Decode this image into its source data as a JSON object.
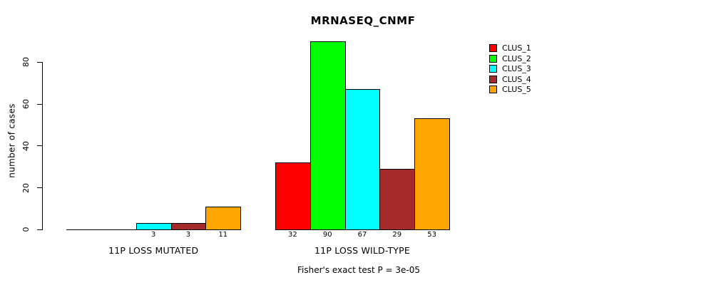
{
  "title": "MRNASEQ_CNMF",
  "footer": "Fisher's exact test P = 3e-05",
  "y_axis": {
    "label": "number of cases",
    "ticks": [
      0,
      20,
      40,
      60,
      80
    ]
  },
  "legend": {
    "items": [
      {
        "label": "CLUS_1",
        "color": "#FF0000"
      },
      {
        "label": "CLUS_2",
        "color": "#00FF00"
      },
      {
        "label": "CLUS_3",
        "color": "#00FFFF"
      },
      {
        "label": "CLUS_4",
        "color": "#A52A2A"
      },
      {
        "label": "CLUS_5",
        "color": "#FFA500"
      }
    ]
  },
  "chart_data": {
    "type": "bar",
    "title": "MRNASEQ_CNMF",
    "subtitle": "Fisher's exact test P = 3e-05",
    "xlabel": "",
    "ylabel": "number of cases",
    "categories": [
      "11P LOSS MUTATED",
      "11P LOSS WILD-TYPE"
    ],
    "series": [
      {
        "name": "CLUS_1",
        "color": "#FF0000",
        "values": [
          0,
          32
        ]
      },
      {
        "name": "CLUS_2",
        "color": "#00FF00",
        "values": [
          0,
          90
        ]
      },
      {
        "name": "CLUS_3",
        "color": "#00FFFF",
        "values": [
          3,
          67
        ]
      },
      {
        "name": "CLUS_4",
        "color": "#A52A2A",
        "values": [
          3,
          29
        ]
      },
      {
        "name": "CLUS_5",
        "color": "#FFA500",
        "values": [
          11,
          53
        ]
      }
    ],
    "bar_value_labels": {
      "11P LOSS MUTATED": [
        0,
        0,
        3,
        3,
        11
      ],
      "11P LOSS WILD-TYPE": [
        32,
        90,
        67,
        29,
        53
      ]
    },
    "yticks": [
      0,
      20,
      40,
      60,
      80
    ],
    "ylim": [
      0,
      90
    ],
    "grid": false,
    "legend_position": "right-outside",
    "legend_entries": [
      "CLUS_1",
      "CLUS_2",
      "CLUS_3",
      "CLUS_4",
      "CLUS_5"
    ],
    "zero_bars_drawn_as_flat_line": true
  }
}
